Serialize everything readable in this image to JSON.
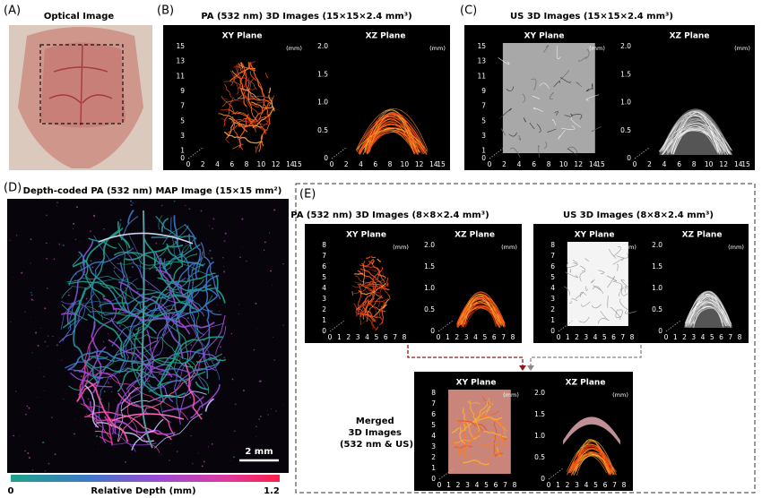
{
  "panel_a": {
    "label": "(A)",
    "title": "Optical Image"
  },
  "panel_b": {
    "label": "(B)",
    "title": "PA (532 nm) 3D Images  (15×15×2.4 mm³)",
    "plots": [
      {
        "plane": "XY Plane",
        "unit": "(mm)",
        "yticks": [
          "0",
          "1",
          "3",
          "5",
          "7",
          "9",
          "11",
          "13",
          "15"
        ],
        "xticks": [
          "0",
          "2",
          "4",
          "6",
          "8",
          "10",
          "12",
          "14",
          "15"
        ]
      },
      {
        "plane": "XZ Plane",
        "unit": "(mm)",
        "yticks": [
          "0",
          "0.5",
          "1.0",
          "1.5",
          "2.0"
        ],
        "xticks": [
          "0",
          "2",
          "4",
          "6",
          "8",
          "10",
          "12",
          "14",
          "15"
        ]
      }
    ]
  },
  "panel_c": {
    "label": "(C)",
    "title": "US 3D Images  (15×15×2.4 mm³)",
    "plots": [
      {
        "plane": "XY Plane",
        "unit": "(mm)",
        "yticks": [
          "0",
          "1",
          "3",
          "5",
          "7",
          "9",
          "11",
          "13",
          "15"
        ],
        "xticks": [
          "0",
          "2",
          "4",
          "6",
          "8",
          "10",
          "12",
          "14",
          "15"
        ]
      },
      {
        "plane": "XZ Plane",
        "unit": "(mm)",
        "yticks": [
          "0",
          "0.5",
          "1.0",
          "1.5",
          "2.0"
        ],
        "xticks": [
          "0",
          "2",
          "4",
          "6",
          "8",
          "10",
          "12",
          "14",
          "15"
        ]
      }
    ]
  },
  "panel_d": {
    "label": "(D)",
    "title": "Depth-coded PA (532 nm) MAP Image  (15×15 mm²)",
    "scale_bar": "2 mm",
    "colorbar": {
      "min": "0",
      "label": "Relative Depth (mm)",
      "max": "1.2"
    }
  },
  "panel_e": {
    "label": "(E)",
    "pa": {
      "title": "PA (532 nm) 3D Images  (8×8×2.4 mm³)",
      "plots": [
        {
          "plane": "XY Plane",
          "unit": "(mm)",
          "yticks": [
            "0",
            "1",
            "2",
            "3",
            "4",
            "5",
            "6",
            "7",
            "8"
          ],
          "xticks": [
            "0",
            "1",
            "2",
            "3",
            "4",
            "5",
            "6",
            "7",
            "8"
          ]
        },
        {
          "plane": "XZ Plane",
          "unit": "(mm)",
          "yticks": [
            "0",
            "0.5",
            "1.0",
            "1.5",
            "2.0"
          ],
          "xticks": [
            "0",
            "1",
            "2",
            "3",
            "4",
            "5",
            "6",
            "7",
            "8"
          ]
        }
      ]
    },
    "us": {
      "title": "US 3D Images  (8×8×2.4 mm³)",
      "plots": [
        {
          "plane": "XY Plane",
          "unit": "(mm)",
          "yticks": [
            "0",
            "1",
            "2",
            "3",
            "4",
            "5",
            "6",
            "7",
            "8"
          ],
          "xticks": [
            "0",
            "1",
            "2",
            "3",
            "4",
            "5",
            "6",
            "7",
            "8"
          ]
        },
        {
          "plane": "XZ Plane",
          "unit": "(mm)",
          "yticks": [
            "0",
            "0.5",
            "1.0",
            "1.5",
            "2.0"
          ],
          "xticks": [
            "0",
            "1",
            "2",
            "3",
            "4",
            "5",
            "6",
            "7",
            "8"
          ]
        }
      ]
    },
    "merged": {
      "title": [
        "Merged",
        "3D Images",
        "(532 nm & US)"
      ],
      "plots": [
        {
          "plane": "XY Plane",
          "unit": "(mm)",
          "yticks": [
            "0",
            "1",
            "2",
            "3",
            "4",
            "5",
            "6",
            "7",
            "8"
          ],
          "xticks": [
            "0",
            "1",
            "2",
            "3",
            "4",
            "5",
            "6",
            "7",
            "8"
          ]
        },
        {
          "plane": "XZ Plane",
          "unit": "(mm)",
          "yticks": [
            "0",
            "0.5",
            "1.0",
            "1.5",
            "2.0"
          ],
          "xticks": [
            "0",
            "1",
            "2",
            "3",
            "4",
            "5",
            "6",
            "7",
            "8"
          ]
        }
      ]
    }
  }
}
